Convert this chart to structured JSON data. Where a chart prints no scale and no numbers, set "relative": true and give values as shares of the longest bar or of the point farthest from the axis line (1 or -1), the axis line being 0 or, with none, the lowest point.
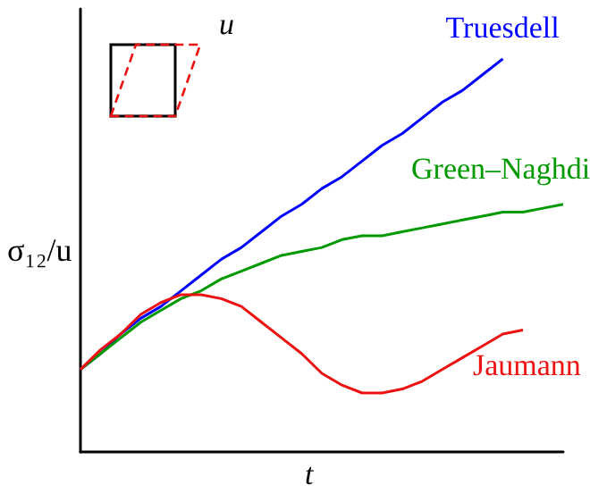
{
  "chart_data": {
    "type": "line",
    "relative": true,
    "xlabel": "t",
    "ylabel": "σ₁₂/u",
    "annotations": [
      "u"
    ],
    "categories": [
      null,
      null,
      null,
      null,
      null,
      null,
      null,
      null,
      null,
      null,
      null,
      null,
      null,
      null,
      null,
      null,
      null,
      null,
      null,
      null,
      null,
      null,
      null,
      null,
      null
    ],
    "series": [
      {
        "name": "Truesdell",
        "color": "#0000ff",
        "values": [
          0.21,
          0.25,
          0.3,
          0.34,
          0.37,
          0.41,
          0.45,
          0.49,
          0.52,
          0.56,
          0.6,
          0.63,
          0.67,
          0.7,
          0.74,
          0.78,
          0.81,
          0.85,
          0.89,
          0.92,
          0.96,
          1,
          null,
          null,
          null
        ]
      },
      {
        "name": "Green–Naghdi",
        "color": "#009900",
        "values": [
          0.21,
          0.25,
          0.29,
          0.33,
          0.36,
          0.39,
          0.41,
          0.44,
          0.46,
          0.48,
          0.5,
          0.51,
          0.52,
          0.54,
          0.55,
          0.55,
          0.56,
          0.57,
          0.58,
          0.59,
          0.6,
          0.61,
          0.61,
          0.62,
          0.63
        ]
      },
      {
        "name": "Jaumann",
        "color": "#ee1111",
        "values": [
          0.21,
          0.26,
          0.3,
          0.35,
          0.38,
          0.4,
          0.4,
          0.39,
          0.37,
          0.33,
          0.29,
          0.25,
          0.2,
          0.17,
          0.15,
          0.15,
          0.16,
          0.18,
          0.21,
          0.24,
          0.27,
          0.3,
          0.31,
          null,
          null
        ]
      }
    ],
    "legend": false,
    "grid": false,
    "marker": "none",
    "line_style": "solid"
  }
}
